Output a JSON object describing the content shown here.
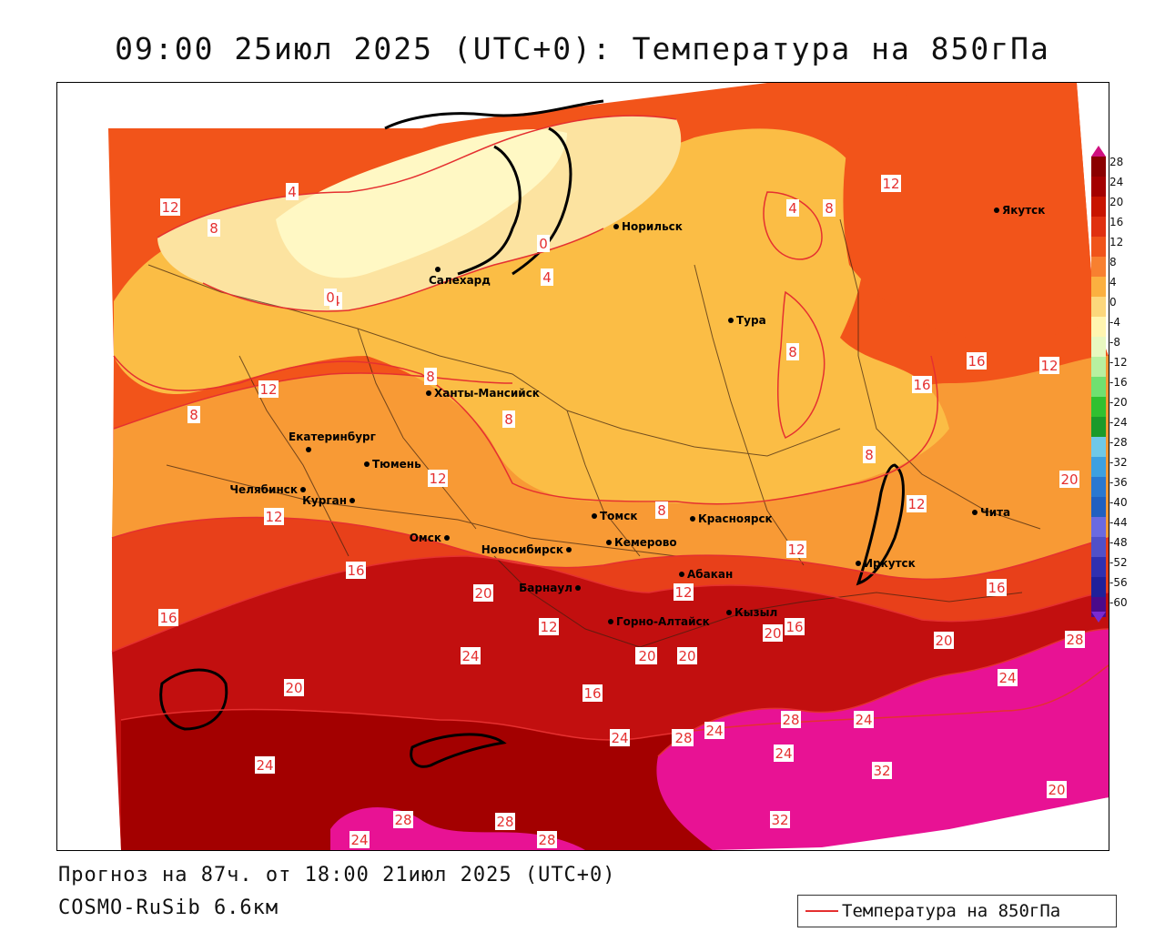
{
  "title": "09:00 25июл 2025 (UTC+0): Температура на 850гПа",
  "forecast_line": "Прогноз на 87ч. от 18:00 21июл 2025 (UTC+0)",
  "model_line": "COSMO-RuSib 6.6км",
  "legend": {
    "label": "Температура на 850гПа",
    "line_color": "#e53030"
  },
  "colorbar": {
    "labels": [
      "28",
      "24",
      "20",
      "16",
      "12",
      "8",
      "4",
      "0",
      "-4",
      "-8",
      "-12",
      "-16",
      "-20",
      "-24",
      "-28",
      "-32",
      "-36",
      "-40",
      "-44",
      "-48",
      "-52",
      "-56",
      "-60"
    ],
    "colors": [
      "#8b0000",
      "#a40000",
      "#c81400",
      "#e03010",
      "#f0541a",
      "#f88030",
      "#fbb040",
      "#fcd77c",
      "#fff5b0",
      "#e8f8c0",
      "#b8f0a0",
      "#70e070",
      "#30c030",
      "#1a9a2a",
      "#6fc8e8",
      "#3ea0e0",
      "#2a78d0",
      "#2060c0",
      "#6a6ae0",
      "#5050c8",
      "#3030b0",
      "#20209a",
      "#4a0a8a"
    ]
  },
  "cities": [
    {
      "name": "Якутск"
    },
    {
      "name": "Норильск"
    },
    {
      "name": "Салехард"
    },
    {
      "name": "Тура"
    },
    {
      "name": "Ханты-Мансийск"
    },
    {
      "name": "Екатеринбург"
    },
    {
      "name": "Тюмень"
    },
    {
      "name": "Челябинск"
    },
    {
      "name": "Курган"
    },
    {
      "name": "Омск"
    },
    {
      "name": "Новосибирск"
    },
    {
      "name": "Томск"
    },
    {
      "name": "Кемерово"
    },
    {
      "name": "Красноярск"
    },
    {
      "name": "Абакан"
    },
    {
      "name": "Барнаул"
    },
    {
      "name": "Горно-Алтайск"
    },
    {
      "name": "Кызыл"
    },
    {
      "name": "Иркутск"
    },
    {
      "name": "Чита"
    }
  ],
  "contour_labels": [
    "12",
    "8",
    "4",
    "0",
    "4",
    "4",
    "0",
    "8",
    "8",
    "12",
    "8",
    "12",
    "12",
    "8",
    "4",
    "12",
    "8",
    "8",
    "16",
    "16",
    "12",
    "8",
    "12",
    "20",
    "12",
    "16",
    "16",
    "16",
    "12",
    "20",
    "12",
    "16",
    "20",
    "16",
    "20",
    "28",
    "24",
    "20",
    "20",
    "20",
    "24",
    "24",
    "20",
    "24",
    "28",
    "24",
    "28",
    "24",
    "28",
    "24",
    "28",
    "32",
    "20",
    "24",
    "28",
    "28",
    "28",
    "32"
  ],
  "map_colors": {
    "cold_0": "#fff8c4",
    "band_4": "#fce3a0",
    "band_8": "#fbbd45",
    "band_12": "#f89a35",
    "band_16": "#f2541a",
    "band_20": "#e8401a",
    "band_24": "#c20f0f",
    "band_28": "#a30000",
    "band_32": "#e81294",
    "band_36": "#d0108a"
  }
}
